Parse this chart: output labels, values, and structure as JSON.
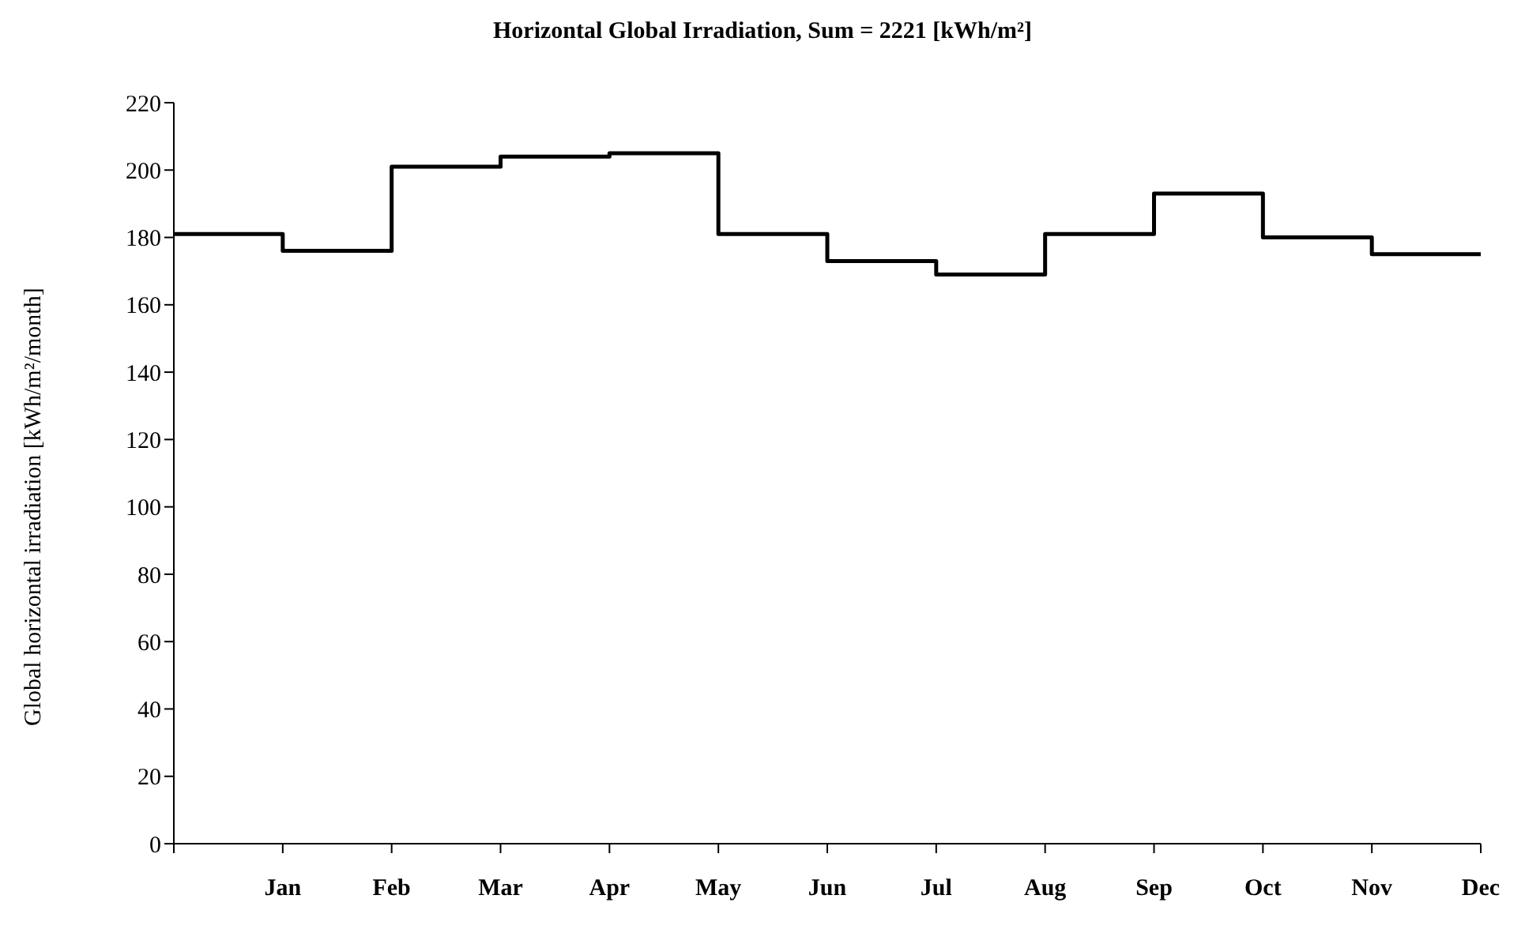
{
  "chart_data": {
    "type": "step",
    "title": "Horizontal Global Irradiation, Sum = 2221 [kWh/m²]",
    "ylabel": "Global horizontal irradiation [kWh/m²/month]",
    "categories": [
      null,
      "Jan",
      "Feb",
      "Mar",
      "Apr",
      "May",
      "Jun",
      "Jul",
      "Aug",
      "Sep",
      "Oct",
      "Nov",
      "Dec"
    ],
    "values": [
      181,
      181,
      176,
      201,
      204,
      205,
      181,
      173,
      169,
      181,
      193,
      180,
      175
    ],
    "color": "#000000",
    "ylim": [
      0,
      220
    ],
    "yticks": [
      0,
      20,
      40,
      60,
      80,
      100,
      120,
      140,
      160,
      180,
      200,
      220
    ],
    "grid": false,
    "legend": false,
    "marker": "none"
  }
}
